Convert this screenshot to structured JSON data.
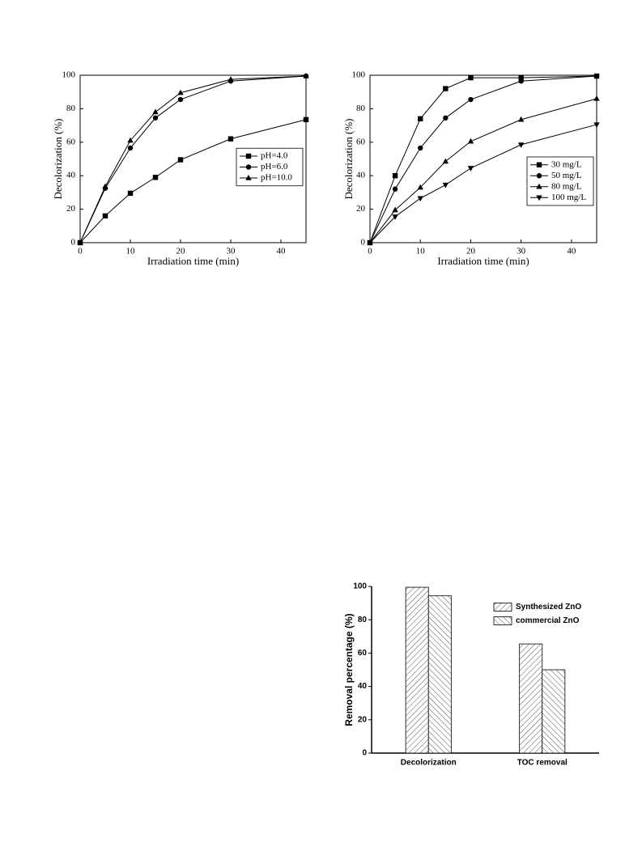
{
  "chart_data": [
    {
      "type": "line",
      "x": [
        0,
        5,
        10,
        15,
        20,
        30,
        45
      ],
      "xlim": [
        0,
        45
      ],
      "xticks": [
        0,
        10,
        20,
        30,
        40
      ],
      "ylim": [
        0,
        100
      ],
      "yticks": [
        0,
        20,
        40,
        60,
        80,
        100
      ],
      "xlabel": "Irradiation time (min)",
      "ylabel": "Decolorization (%)",
      "legend": "right",
      "series": [
        {
          "name": "pH=4.0",
          "color": "#000000",
          "marker": "square",
          "values": [
            0,
            16,
            29.5,
            39,
            49.5,
            62,
            73.5
          ]
        },
        {
          "name": "pH=6.0",
          "color": "#000000",
          "marker": "circle",
          "values": [
            0,
            32.5,
            56.5,
            74.5,
            85.5,
            96.5,
            99.5
          ]
        },
        {
          "name": "pH=10.0",
          "color": "#000000",
          "marker": "triangle",
          "values": [
            0,
            33.5,
            61,
            78,
            89.5,
            97.5,
            99.5
          ]
        }
      ]
    },
    {
      "type": "line",
      "x": [
        0,
        5,
        10,
        15,
        20,
        30,
        45
      ],
      "xlim": [
        0,
        45
      ],
      "xticks": [
        0,
        10,
        20,
        30,
        40
      ],
      "ylim": [
        0,
        100
      ],
      "yticks": [
        0,
        20,
        40,
        60,
        80,
        100
      ],
      "xlabel": "Irradiation time (min)",
      "ylabel": "Decolorization (%)",
      "legend": "lower right",
      "series": [
        {
          "name": "30 mg/L",
          "color": "#000000",
          "marker": "square",
          "values": [
            0,
            40,
            74,
            92,
            98.5,
            98.5,
            99.5
          ]
        },
        {
          "name": "50 mg/L",
          "color": "#000000",
          "marker": "circle",
          "values": [
            0,
            32,
            56.5,
            74.5,
            85.5,
            96.5,
            99.5
          ]
        },
        {
          "name": "80 mg/L",
          "color": "#000000",
          "marker": "triangle",
          "values": [
            0,
            19.5,
            33,
            48.5,
            60.5,
            73.5,
            86
          ]
        },
        {
          "name": "100 mg/L",
          "color": "#000000",
          "marker": "triangle-down",
          "values": [
            0,
            15.5,
            26.5,
            34.5,
            44.5,
            58.5,
            70.5
          ]
        }
      ]
    },
    {
      "type": "bar",
      "categories": [
        "Decolorization",
        "TOC removal"
      ],
      "ylim": [
        0,
        100
      ],
      "yticks": [
        0,
        20,
        40,
        60,
        80,
        100
      ],
      "ylabel": "Removal percentage (%)",
      "legend": "upper right",
      "series": [
        {
          "name": "Synthesized ZnO",
          "color": "#000000",
          "hatch": "forward",
          "values": [
            99.5,
            65.5
          ]
        },
        {
          "name": "commercial ZnO",
          "color": "#000000",
          "hatch": "back",
          "values": [
            94.5,
            50
          ]
        }
      ]
    }
  ]
}
